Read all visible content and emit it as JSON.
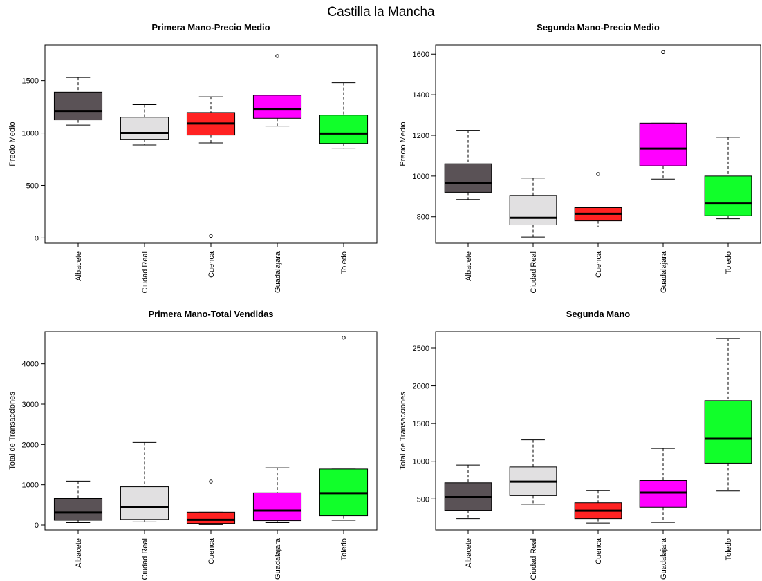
{
  "title": "Castilla la Mancha",
  "colors": {
    "Albacete": "#5a5256",
    "Ciudad Real": "#e1e0e1",
    "Cuenca": "#ff2222",
    "Guadalajara": "#ff00ff",
    "Toledo": "#11ff2a"
  },
  "chart_data": [
    {
      "type": "box",
      "title": "Primera Mano-Precio Medio",
      "xlabel": "",
      "ylabel": "Precio Medio",
      "categories": [
        "Albacete",
        "Ciudad Real",
        "Cuenca",
        "Guadalajara",
        "Toledo"
      ],
      "ylim": [
        -50,
        1840
      ],
      "yticks": [
        0,
        500,
        1000,
        1500
      ],
      "boxes": [
        {
          "min": 1075,
          "q1": 1125,
          "median": 1210,
          "q3": 1390,
          "max": 1530,
          "outliers": []
        },
        {
          "min": 885,
          "q1": 940,
          "median": 1000,
          "q3": 1150,
          "max": 1270,
          "outliers": []
        },
        {
          "min": 905,
          "q1": 980,
          "median": 1090,
          "q3": 1195,
          "max": 1345,
          "outliers": [
            20
          ]
        },
        {
          "min": 1065,
          "q1": 1140,
          "median": 1230,
          "q3": 1360,
          "max": 1360,
          "outliers": [
            1735
          ]
        },
        {
          "min": 850,
          "q1": 900,
          "median": 995,
          "q3": 1170,
          "max": 1480,
          "outliers": []
        }
      ]
    },
    {
      "type": "box",
      "title": "Segunda Mano-Precio Medio",
      "xlabel": "",
      "ylabel": "Precio Medio",
      "categories": [
        "Albacete",
        "Ciudad Real",
        "Cuenca",
        "Guadalajara",
        "Toledo"
      ],
      "ylim": [
        670,
        1645
      ],
      "yticks": [
        800,
        1000,
        1200,
        1400,
        1600
      ],
      "boxes": [
        {
          "min": 885,
          "q1": 920,
          "median": 965,
          "q3": 1060,
          "max": 1225,
          "outliers": []
        },
        {
          "min": 700,
          "q1": 760,
          "median": 795,
          "q3": 905,
          "max": 990,
          "outliers": []
        },
        {
          "min": 750,
          "q1": 780,
          "median": 815,
          "q3": 845,
          "max": 845,
          "outliers": [
            1010
          ]
        },
        {
          "min": 985,
          "q1": 1050,
          "median": 1135,
          "q3": 1260,
          "max": 1260,
          "outliers": [
            1610
          ]
        },
        {
          "min": 790,
          "q1": 805,
          "median": 865,
          "q3": 1000,
          "max": 1190,
          "outliers": []
        }
      ]
    },
    {
      "type": "box",
      "title": "Primera Mano-Total Vendidas",
      "xlabel": "",
      "ylabel": "Total de Transacciones",
      "categories": [
        "Albacete",
        "Ciudad Real",
        "Cuenca",
        "Guadalajara",
        "Toledo"
      ],
      "ylim": [
        -120,
        4800
      ],
      "yticks": [
        0,
        1000,
        2000,
        3000,
        4000
      ],
      "boxes": [
        {
          "min": 60,
          "q1": 120,
          "median": 310,
          "q3": 660,
          "max": 1090,
          "outliers": []
        },
        {
          "min": 80,
          "q1": 140,
          "median": 450,
          "q3": 950,
          "max": 2050,
          "outliers": []
        },
        {
          "min": 10,
          "q1": 40,
          "median": 130,
          "q3": 320,
          "max": 320,
          "outliers": [
            1080
          ]
        },
        {
          "min": 60,
          "q1": 110,
          "median": 360,
          "q3": 800,
          "max": 1420,
          "outliers": []
        },
        {
          "min": 120,
          "q1": 230,
          "median": 790,
          "q3": 1390,
          "max": 1390,
          "outliers": [
            4650
          ]
        }
      ]
    },
    {
      "type": "box",
      "title": "Segunda Mano",
      "xlabel": "",
      "ylabel": "Total de Transacciones",
      "categories": [
        "Albacete",
        "Ciudad Real",
        "Cuenca",
        "Guadalajara",
        "Toledo"
      ],
      "ylim": [
        90,
        2720
      ],
      "yticks": [
        500,
        1000,
        1500,
        2000,
        2500
      ],
      "boxes": [
        {
          "min": 240,
          "q1": 350,
          "median": 525,
          "q3": 715,
          "max": 950,
          "outliers": []
        },
        {
          "min": 430,
          "q1": 545,
          "median": 730,
          "q3": 925,
          "max": 1285,
          "outliers": []
        },
        {
          "min": 180,
          "q1": 240,
          "median": 345,
          "q3": 450,
          "max": 610,
          "outliers": []
        },
        {
          "min": 190,
          "q1": 390,
          "median": 585,
          "q3": 745,
          "max": 1170,
          "outliers": []
        },
        {
          "min": 605,
          "q1": 975,
          "median": 1300,
          "q3": 1805,
          "max": 2630,
          "outliers": []
        }
      ]
    }
  ]
}
